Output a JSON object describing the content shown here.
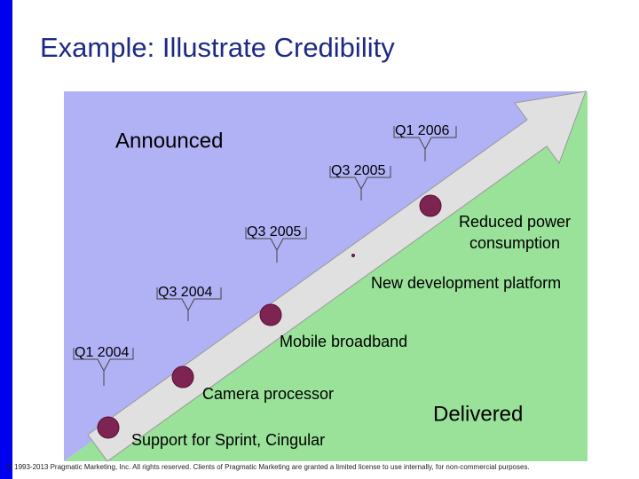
{
  "title": "Example: Illustrate Credibility",
  "announced": "Announced",
  "delivered": "Delivered",
  "milestones": [
    "Support for Sprint, Cingular",
    "Camera processor",
    "Mobile broadband",
    "New development platform",
    "Reduced power consumption"
  ],
  "dates": [
    "Q1 2004",
    "Q3 2004",
    "Q3 2005",
    "Q3 2005",
    "Q1 2006"
  ],
  "footer": "© 1993-2013 Pragmatic Marketing, Inc. All rights reserved. Clients of Pragmatic Marketing are granted a limited license to use internally, for non-commercial purposes."
}
